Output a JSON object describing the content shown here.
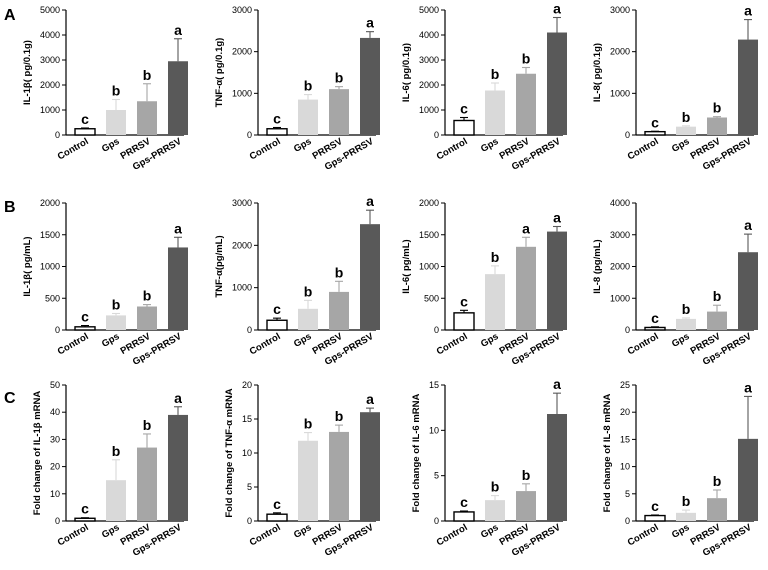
{
  "panel_letters": [
    "A",
    "B",
    "C"
  ],
  "colors": {
    "control": "#ffffff",
    "gps": "#d9d9d9",
    "prrsv": "#a6a6a6",
    "gps_prrsv": "#595959",
    "axis": "#000000"
  },
  "chart_data": [
    {
      "type": "bar",
      "panel": "A",
      "ylabel": "IL-1β( pg/0.1g)",
      "ylim": [
        0,
        5000
      ],
      "yticks": [
        0,
        1000,
        2000,
        3000,
        4000,
        5000
      ],
      "categories": [
        "Control",
        "Gps",
        "PRRSV",
        "Gps-PRRSV"
      ],
      "values": [
        250,
        1000,
        1350,
        2950
      ],
      "errors": [
        30,
        420,
        700,
        900
      ],
      "letters": [
        "c",
        "b",
        "b",
        "a"
      ]
    },
    {
      "type": "bar",
      "panel": "A",
      "ylabel": "TNF-α( pg/0.1g)",
      "ylim": [
        0,
        3000
      ],
      "yticks": [
        0,
        1000,
        2000,
        3000
      ],
      "categories": [
        "Control",
        "Gps",
        "PRRSV",
        "Gps-PRRSV"
      ],
      "values": [
        150,
        850,
        1100,
        2330
      ],
      "errors": [
        30,
        120,
        60,
        150
      ],
      "letters": [
        "c",
        "b",
        "b",
        "a"
      ]
    },
    {
      "type": "bar",
      "panel": "A",
      "ylabel": "IL-6( pg/0.1g)",
      "ylim": [
        0,
        5000
      ],
      "yticks": [
        0,
        1000,
        2000,
        3000,
        4000,
        5000
      ],
      "categories": [
        "Control",
        "Gps",
        "PRRSV",
        "Gps-PRRSV"
      ],
      "values": [
        580,
        1780,
        2450,
        4100
      ],
      "errors": [
        120,
        300,
        250,
        600
      ],
      "letters": [
        "c",
        "b",
        "b",
        "a"
      ]
    },
    {
      "type": "bar",
      "panel": "A",
      "ylabel": "IL-8( pg/0.1g)",
      "ylim": [
        0,
        3000
      ],
      "yticks": [
        0,
        1000,
        2000,
        3000
      ],
      "categories": [
        "Control",
        "Gps",
        "PRRSV",
        "Gps-PRRSV"
      ],
      "values": [
        80,
        200,
        420,
        2290
      ],
      "errors": [
        10,
        20,
        20,
        480
      ],
      "letters": [
        "c",
        "b",
        "b",
        "a"
      ]
    },
    {
      "type": "bar",
      "panel": "B",
      "ylabel": "IL-1β( pg/mL)",
      "ylim": [
        0,
        2000
      ],
      "yticks": [
        0,
        500,
        1000,
        1500,
        2000
      ],
      "categories": [
        "Control",
        "Gps",
        "PRRSV",
        "Gps-PRRSV"
      ],
      "values": [
        50,
        230,
        370,
        1300
      ],
      "errors": [
        20,
        30,
        30,
        160
      ],
      "letters": [
        "c",
        "b",
        "b",
        "a"
      ]
    },
    {
      "type": "bar",
      "panel": "B",
      "ylabel": "TNF-α(pg/mL)",
      "ylim": [
        0,
        3000
      ],
      "yticks": [
        0,
        1000,
        2000,
        3000
      ],
      "categories": [
        "Control",
        "Gps",
        "PRRSV",
        "Gps-PRRSV"
      ],
      "values": [
        230,
        500,
        900,
        2500
      ],
      "errors": [
        50,
        200,
        250,
        330
      ],
      "letters": [
        "c",
        "b",
        "b",
        "a"
      ]
    },
    {
      "type": "bar",
      "panel": "B",
      "ylabel": "IL-6( pg/mL)",
      "ylim": [
        0,
        2000
      ],
      "yticks": [
        0,
        500,
        1000,
        1500,
        2000
      ],
      "categories": [
        "Control",
        "Gps",
        "PRRSV",
        "Gps-PRRSV"
      ],
      "values": [
        270,
        880,
        1310,
        1550
      ],
      "errors": [
        40,
        130,
        150,
        80
      ],
      "letters": [
        "c",
        "b",
        "a",
        "a"
      ]
    },
    {
      "type": "bar",
      "panel": "B",
      "ylabel": "IL-8 (pg/mL)",
      "ylim": [
        0,
        4000
      ],
      "yticks": [
        0,
        1000,
        2000,
        3000,
        4000
      ],
      "categories": [
        "Control",
        "Gps",
        "PRRSV",
        "Gps-PRRSV"
      ],
      "values": [
        80,
        350,
        580,
        2450
      ],
      "errors": [
        20,
        30,
        200,
        570
      ],
      "letters": [
        "c",
        "b",
        "b",
        "a"
      ]
    },
    {
      "type": "bar",
      "panel": "C",
      "ylabel": "Fold change of IL-1β mRNA",
      "ylim": [
        0,
        50
      ],
      "yticks": [
        0,
        10,
        20,
        30,
        40,
        50
      ],
      "categories": [
        "Control",
        "Gps",
        "PRRSV",
        "Gps-PRRSV"
      ],
      "values": [
        1,
        15,
        27,
        39
      ],
      "errors": [
        0.2,
        7.5,
        5,
        3
      ],
      "letters": [
        "c",
        "b",
        "b",
        "a"
      ]
    },
    {
      "type": "bar",
      "panel": "C",
      "ylabel": "Fold change of  TNF-α mRNA",
      "ylim": [
        0,
        20
      ],
      "yticks": [
        0,
        5,
        10,
        15,
        20
      ],
      "categories": [
        "Control",
        "Gps",
        "PRRSV",
        "Gps-PRRSV"
      ],
      "values": [
        1,
        11.8,
        13.1,
        16
      ],
      "errors": [
        0.2,
        1.2,
        1,
        0.6
      ],
      "letters": [
        "c",
        "b",
        "b",
        "a"
      ]
    },
    {
      "type": "bar",
      "panel": "C",
      "ylabel": "Fold change of IL-6 mRNA",
      "ylim": [
        0,
        15
      ],
      "yticks": [
        0,
        5,
        10,
        15
      ],
      "categories": [
        "Control",
        "Gps",
        "PRRSV",
        "Gps-PRRSV"
      ],
      "values": [
        1,
        2.3,
        3.3,
        11.8
      ],
      "errors": [
        0.1,
        0.5,
        0.8,
        2.3
      ],
      "letters": [
        "c",
        "b",
        "b",
        "a"
      ]
    },
    {
      "type": "bar",
      "panel": "C",
      "ylabel": "Fold change of IL-8 mRNA",
      "ylim": [
        0,
        25
      ],
      "yticks": [
        0,
        5,
        10,
        15,
        20,
        25
      ],
      "categories": [
        "Control",
        "Gps",
        "PRRSV",
        "Gps-PRRSV"
      ],
      "values": [
        1,
        1.5,
        4.2,
        15.1
      ],
      "errors": [
        0.1,
        0.5,
        1.5,
        7.8
      ],
      "letters": [
        "c",
        "b",
        "b",
        "a"
      ]
    }
  ]
}
